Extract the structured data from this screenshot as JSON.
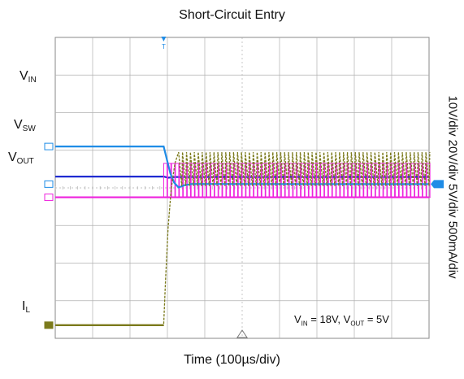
{
  "chart_data": {
    "type": "line",
    "title": "Short-Circuit Entry",
    "xlabel": "Time (100µs/div)",
    "vertical_scale_label": "10V/div 20V/div 5V/div 500mA/div",
    "grid": true,
    "divisions": {
      "x": 10,
      "y": 8
    },
    "trigger_marker": "T",
    "annotation": {
      "prefix_1": "V",
      "sub_1": "IN",
      "text_1": " = 18V, ",
      "prefix_2": "V",
      "sub_2": "OUT",
      "text_2": " = 5V"
    },
    "channel_labels": {
      "vin": {
        "main": "V",
        "sub": "IN"
      },
      "vsw": {
        "main": "V",
        "sub": "SW"
      },
      "vout": {
        "main": "V",
        "sub": "OUT"
      },
      "il": {
        "main": "I",
        "sub": "L"
      }
    },
    "colors": {
      "vin": "#1f2bd1",
      "vsw": "#ee22dd",
      "vout": "#1f8ce6",
      "il": "#7b7a1c",
      "grid": "#b0b0b0"
    },
    "series": [
      {
        "key": "vin",
        "unit": "V",
        "scale_per_div": 10,
        "ref_div": 2.5,
        "points": [
          [
            0,
            18
          ],
          [
            2.9,
            18
          ],
          [
            3.02,
            17.7
          ],
          [
            3.2,
            17.9
          ],
          [
            10,
            17.9
          ]
        ]
      },
      {
        "key": "vsw",
        "unit": "V",
        "scale_per_div": 20,
        "ref_div": 3.75,
        "switching_start": 2.9,
        "switching_period": 0.105,
        "low": 0,
        "high": 18
      },
      {
        "key": "vout",
        "unit": "V",
        "scale_per_div": 5,
        "ref_div": 4.1,
        "points": [
          [
            0,
            5
          ],
          [
            2.9,
            5
          ],
          [
            3.0,
            3.0
          ],
          [
            3.08,
            1.4
          ],
          [
            3.18,
            0.2
          ],
          [
            3.3,
            -0.45
          ],
          [
            3.45,
            -0.15
          ],
          [
            3.65,
            0.02
          ],
          [
            10,
            0
          ]
        ]
      },
      {
        "key": "il",
        "unit": "A",
        "scale_per_div": 0.5,
        "ref_div": 0.35,
        "points": [
          [
            0,
            0
          ],
          [
            2.9,
            0
          ],
          [
            2.95,
            0.6
          ],
          [
            3.02,
            1.3
          ],
          [
            3.1,
            1.8
          ],
          [
            3.2,
            2.15
          ],
          [
            3.3,
            2.3
          ]
        ],
        "ripple_start": 3.3,
        "ripple_period": 0.105,
        "ripple_high": 2.3,
        "ripple_low": 1.85
      }
    ]
  }
}
